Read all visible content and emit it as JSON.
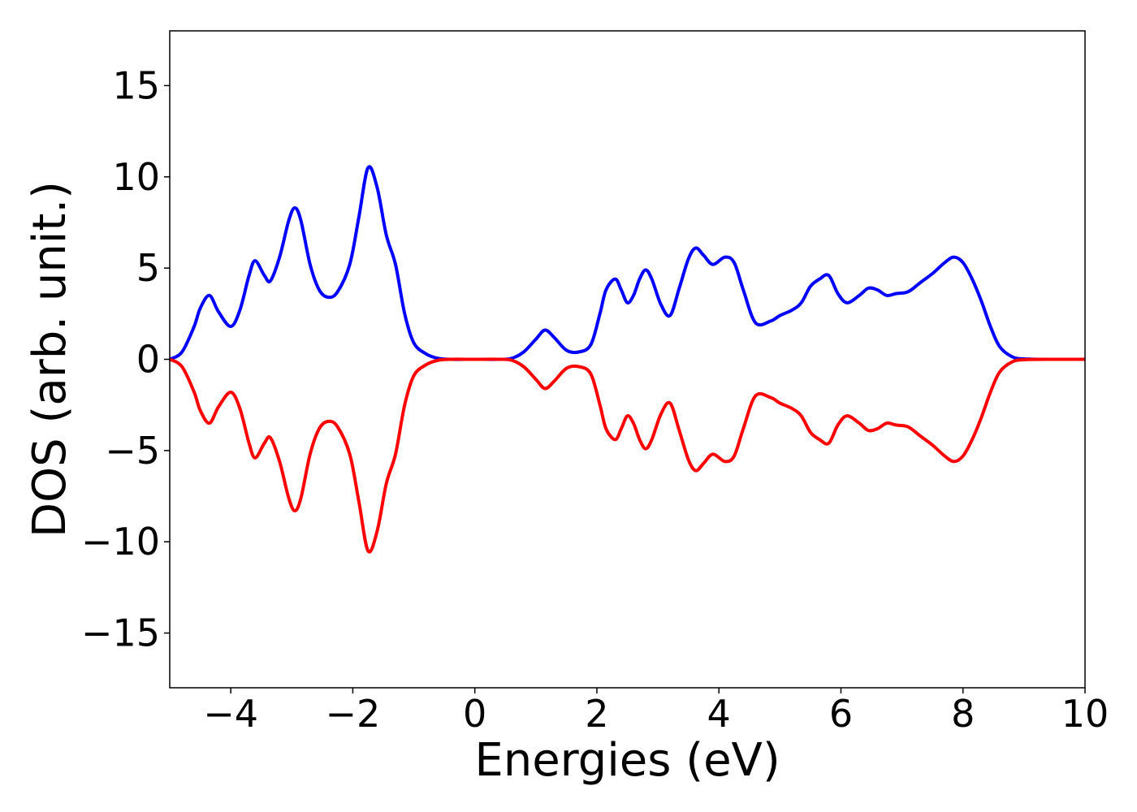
{
  "chart_data": {
    "type": "line",
    "title": "",
    "xlabel": "Energies (eV)",
    "ylabel": "DOS (arb. unit.)",
    "xlim": [
      -5,
      10
    ],
    "ylim": [
      -18,
      18
    ],
    "xticks": [
      -4,
      -2,
      0,
      2,
      4,
      6,
      8,
      10
    ],
    "xtick_labels": [
      "−4",
      "−2",
      "0",
      "2",
      "4",
      "6",
      "8",
      "10"
    ],
    "yticks": [
      -15,
      -10,
      -5,
      0,
      5,
      10,
      15
    ],
    "ytick_labels": [
      "−15",
      "−10",
      "−5",
      "0",
      "5",
      "10",
      "15"
    ],
    "grid": false,
    "legend": "none",
    "series": [
      {
        "color": "#0000ff",
        "x": [
          -5.0,
          -4.8,
          -4.6,
          -4.5,
          -4.35,
          -4.2,
          -4.0,
          -3.85,
          -3.7,
          -3.6,
          -3.45,
          -3.35,
          -3.2,
          -3.05,
          -2.95,
          -2.85,
          -2.7,
          -2.55,
          -2.4,
          -2.25,
          -2.05,
          -1.9,
          -1.75,
          -1.6,
          -1.45,
          -1.3,
          -1.15,
          -1.0,
          -0.8,
          -0.6,
          -0.4,
          0.0,
          0.4,
          0.6,
          0.8,
          1.0,
          1.15,
          1.3,
          1.5,
          1.7,
          1.9,
          2.05,
          2.15,
          2.3,
          2.4,
          2.5,
          2.6,
          2.7,
          2.8,
          2.9,
          3.05,
          3.2,
          3.35,
          3.5,
          3.62,
          3.75,
          3.9,
          4.1,
          4.25,
          4.4,
          4.6,
          4.85,
          5.0,
          5.2,
          5.35,
          5.5,
          5.65,
          5.8,
          5.95,
          6.1,
          6.3,
          6.45,
          6.6,
          6.75,
          6.9,
          7.1,
          7.3,
          7.5,
          7.7,
          7.85,
          8.0,
          8.15,
          8.3,
          8.45,
          8.6,
          8.8,
          9.0,
          9.5,
          10.0
        ],
        "y": [
          0.0,
          0.4,
          1.8,
          2.8,
          3.5,
          2.6,
          1.8,
          2.7,
          4.6,
          5.4,
          4.6,
          4.3,
          5.6,
          7.6,
          8.3,
          7.6,
          5.2,
          3.8,
          3.4,
          3.7,
          5.2,
          7.8,
          10.5,
          9.4,
          6.8,
          5.2,
          2.5,
          0.9,
          0.3,
          0.05,
          0.0,
          0.0,
          0.0,
          0.05,
          0.4,
          1.1,
          1.6,
          1.2,
          0.5,
          0.4,
          0.8,
          2.5,
          3.8,
          4.4,
          3.8,
          3.1,
          3.5,
          4.4,
          4.9,
          4.4,
          3.0,
          2.4,
          3.9,
          5.5,
          6.1,
          5.7,
          5.2,
          5.6,
          5.3,
          3.8,
          2.0,
          2.1,
          2.4,
          2.7,
          3.1,
          4.0,
          4.4,
          4.6,
          3.6,
          3.1,
          3.5,
          3.9,
          3.8,
          3.5,
          3.6,
          3.7,
          4.2,
          4.7,
          5.3,
          5.6,
          5.3,
          4.4,
          3.2,
          1.8,
          0.7,
          0.15,
          0.02,
          0.0,
          0.0
        ]
      },
      {
        "color": "#ff0000",
        "x": [
          -5.0,
          -4.8,
          -4.6,
          -4.5,
          -4.35,
          -4.2,
          -4.0,
          -3.85,
          -3.7,
          -3.6,
          -3.45,
          -3.35,
          -3.2,
          -3.05,
          -2.95,
          -2.85,
          -2.7,
          -2.55,
          -2.4,
          -2.25,
          -2.05,
          -1.9,
          -1.75,
          -1.6,
          -1.45,
          -1.3,
          -1.15,
          -1.0,
          -0.8,
          -0.6,
          -0.4,
          0.0,
          0.4,
          0.6,
          0.8,
          1.0,
          1.15,
          1.3,
          1.5,
          1.7,
          1.9,
          2.05,
          2.15,
          2.3,
          2.4,
          2.5,
          2.6,
          2.7,
          2.8,
          2.9,
          3.05,
          3.2,
          3.35,
          3.5,
          3.62,
          3.75,
          3.9,
          4.1,
          4.25,
          4.4,
          4.6,
          4.85,
          5.0,
          5.2,
          5.35,
          5.5,
          5.65,
          5.8,
          5.95,
          6.1,
          6.3,
          6.45,
          6.6,
          6.75,
          6.9,
          7.1,
          7.3,
          7.5,
          7.7,
          7.85,
          8.0,
          8.15,
          8.3,
          8.45,
          8.6,
          8.8,
          9.0,
          9.5,
          10.0
        ],
        "y": [
          0.0,
          -0.4,
          -1.8,
          -2.8,
          -3.5,
          -2.6,
          -1.8,
          -2.7,
          -4.6,
          -5.4,
          -4.6,
          -4.3,
          -5.6,
          -7.6,
          -8.3,
          -7.6,
          -5.2,
          -3.8,
          -3.4,
          -3.7,
          -5.2,
          -7.8,
          -10.5,
          -9.4,
          -6.8,
          -5.2,
          -2.5,
          -0.9,
          -0.3,
          -0.05,
          0.0,
          0.0,
          0.0,
          -0.05,
          -0.4,
          -1.1,
          -1.6,
          -1.2,
          -0.5,
          -0.4,
          -0.8,
          -2.5,
          -3.8,
          -4.4,
          -3.8,
          -3.1,
          -3.5,
          -4.4,
          -4.9,
          -4.4,
          -3.0,
          -2.4,
          -3.9,
          -5.5,
          -6.1,
          -5.7,
          -5.2,
          -5.6,
          -5.3,
          -3.8,
          -2.0,
          -2.1,
          -2.4,
          -2.7,
          -3.1,
          -4.0,
          -4.4,
          -4.6,
          -3.6,
          -3.1,
          -3.5,
          -3.9,
          -3.8,
          -3.5,
          -3.6,
          -3.7,
          -4.2,
          -4.7,
          -5.3,
          -5.6,
          -5.3,
          -4.4,
          -3.2,
          -1.8,
          -0.7,
          -0.15,
          -0.02,
          0.0,
          0.0
        ]
      }
    ]
  }
}
